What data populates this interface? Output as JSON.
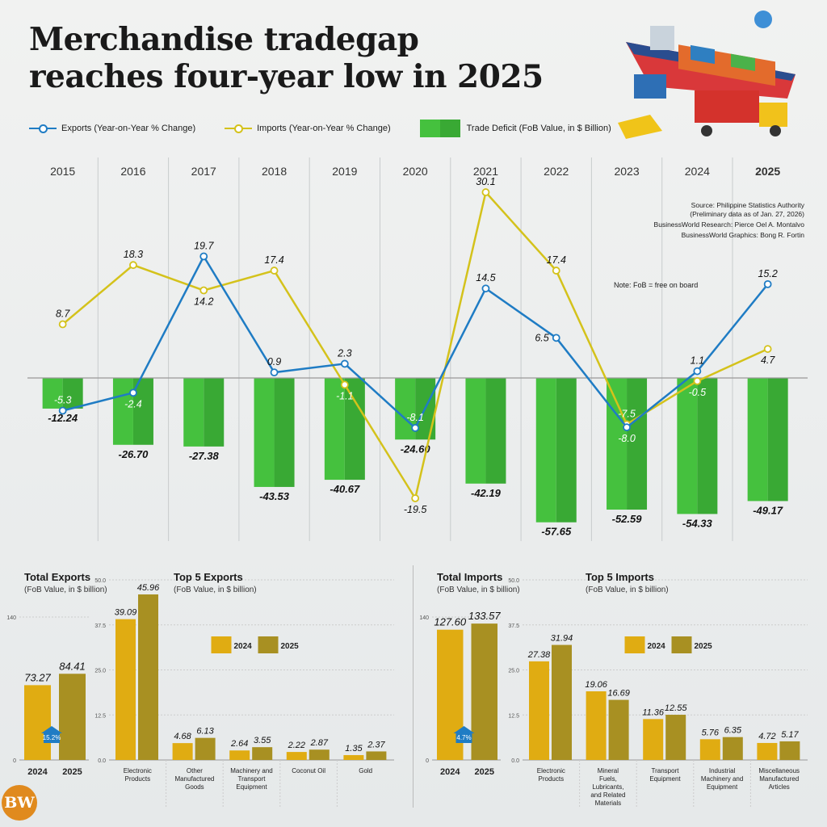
{
  "title_line1": "Merchandise tradegap",
  "title_line2": "reaches four-year low in 2025",
  "legend": {
    "exports": "Exports (Year-on-Year % Change)",
    "imports": "Imports (Year-on-Year % Change)",
    "deficit": "Trade Deficit (FoB Value, in $ Billion)"
  },
  "colors": {
    "exports": "#1f7cc4",
    "imports": "#d4c21b",
    "deficit": "#45c13e",
    "y2024": "#e0ac12",
    "y2025": "#a89022"
  },
  "source": {
    "line1": "Source: Philippine Statistics Authority",
    "line2": "(Preliminary data as of Jan. 27, 2026)",
    "line3": "BusinessWorld Research: Pierce Oel A. Montalvo",
    "line4": "BusinessWorld Graphics: Bong R. Fortin"
  },
  "note": "Note: FoB = free on board",
  "logo": "BW",
  "chart_data": [
    {
      "type": "line+bar",
      "categories": [
        "2015",
        "2016",
        "2017",
        "2018",
        "2019",
        "2020",
        "2021",
        "2022",
        "2023",
        "2024",
        "2025"
      ],
      "series": [
        {
          "name": "Exports (Year-on-Year % Change)",
          "type": "line",
          "values": [
            -5.3,
            -2.4,
            19.7,
            0.9,
            2.3,
            -8.1,
            14.5,
            6.5,
            -8.0,
            1.1,
            15.2
          ]
        },
        {
          "name": "Imports (Year-on-Year % Change)",
          "type": "line",
          "values": [
            8.7,
            18.3,
            14.2,
            17.4,
            -1.1,
            -19.5,
            30.1,
            17.4,
            -7.5,
            -0.5,
            4.7
          ]
        },
        {
          "name": "Trade Deficit (FoB Value, in $ Billion)",
          "type": "bar",
          "values": [
            -12.24,
            -26.7,
            -27.38,
            -43.53,
            -40.67,
            -24.6,
            -42.19,
            -57.65,
            -52.59,
            -54.33,
            -49.17
          ]
        }
      ]
    },
    {
      "type": "bar",
      "title": "Total Exports",
      "subtitle": "(FoB Value, in $ billion)",
      "categories": [
        "2024",
        "2025"
      ],
      "values": [
        73.27,
        84.41
      ],
      "ylim": [
        0,
        140
      ],
      "yticks": [
        "0",
        "140"
      ],
      "badge": "15.2%"
    },
    {
      "type": "bar",
      "title": "Top 5 Exports",
      "subtitle": "(FoB Value, in $ billion)",
      "categories": [
        "Electronic Products",
        "Other Manufactured Goods",
        "Machinery and Transport Equipment",
        "Coconut Oil",
        "Gold"
      ],
      "series": [
        {
          "name": "2024",
          "values": [
            39.09,
            4.68,
            2.64,
            2.22,
            1.35
          ]
        },
        {
          "name": "2025",
          "values": [
            45.96,
            6.13,
            3.55,
            2.87,
            2.37
          ]
        }
      ],
      "ylim": [
        0,
        50
      ],
      "yticks": [
        "0.0",
        "12.5",
        "25.0",
        "37.5",
        "50.0"
      ]
    },
    {
      "type": "bar",
      "title": "Total Imports",
      "subtitle": "(FoB Value, in $ billion)",
      "categories": [
        "2024",
        "2025"
      ],
      "values": [
        127.6,
        133.57
      ],
      "ylim": [
        0,
        140
      ],
      "yticks": [
        "0",
        "140"
      ],
      "badge": "4.7%"
    },
    {
      "type": "bar",
      "title": "Top 5 Imports",
      "subtitle": "(FoB Value, in $ billion)",
      "categories": [
        "Electronic Products",
        "Mineral Fuels, Lubricants, and Related Materials",
        "Transport Equipment",
        "Industrial Machinery and Equipment",
        "Miscellaneous Manufactured Articles"
      ],
      "series": [
        {
          "name": "2024",
          "values": [
            27.38,
            19.06,
            11.36,
            5.76,
            4.72
          ]
        },
        {
          "name": "2025",
          "values": [
            31.94,
            16.69,
            12.55,
            6.35,
            5.17
          ]
        }
      ],
      "ylim": [
        0,
        50
      ],
      "yticks": [
        "0.0",
        "12.5",
        "25.0",
        "37.5",
        "50.0"
      ]
    }
  ]
}
